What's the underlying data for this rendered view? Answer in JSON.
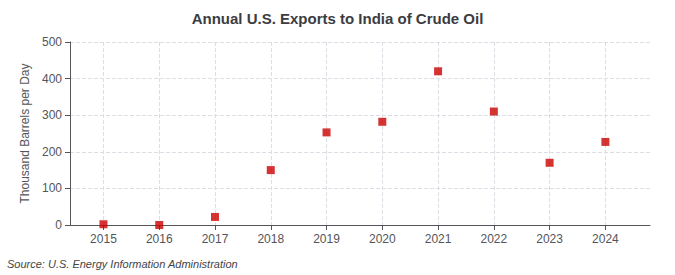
{
  "chart_data": {
    "type": "scatter",
    "title": "Annual U.S. Exports to India of Crude Oil",
    "ylabel": "Thousand Barrels per Day",
    "annotation": "Source: U.S. Energy Information Administration",
    "x": [
      2015,
      2016,
      2017,
      2018,
      2019,
      2020,
      2021,
      2022,
      2023,
      2024
    ],
    "values": [
      2,
      0,
      22,
      150,
      253,
      282,
      420,
      310,
      170,
      227
    ],
    "xlim": [
      2014.4,
      2024.8
    ],
    "xticks": [
      2015,
      2016,
      2017,
      2018,
      2019,
      2020,
      2021,
      2022,
      2023,
      2024
    ],
    "ylim": [
      0,
      500
    ],
    "yticks": [
      0,
      100,
      200,
      300,
      400,
      500
    ],
    "color": "#cc0000",
    "marker": "square",
    "grid": true
  }
}
